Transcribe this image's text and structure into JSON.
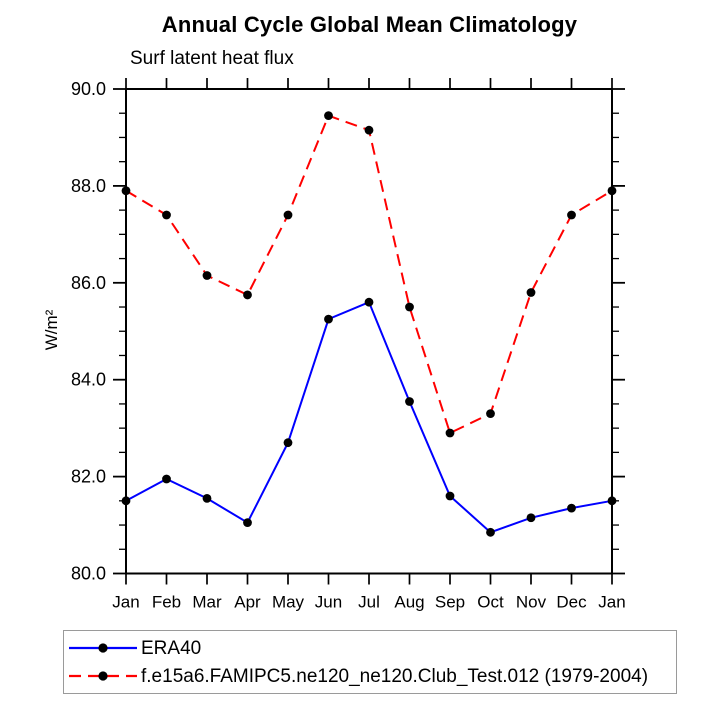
{
  "title": "Annual Cycle Global Mean Climatology",
  "subtitle": "Surf latent heat flux",
  "y_axis_label": "W/m²",
  "legend": {
    "entries": [
      {
        "label": "ERA40",
        "color": "#0000ff",
        "line_style": "solid",
        "marker": "filled-circle",
        "marker_color": "#000000"
      },
      {
        "label": "f.e15a6.FAMIPC5.ne120_ne120.Club_Test.012 (1979-2004)",
        "color": "#ff0000",
        "line_style": "dashed",
        "marker": "filled-circle",
        "marker_color": "#000000"
      }
    ]
  },
  "chart_data": {
    "type": "line",
    "title": "Annual Cycle Global Mean Climatology",
    "subtitle": "Surf latent heat flux",
    "ylabel": "W/m²",
    "categories": [
      "Jan",
      "Feb",
      "Mar",
      "Apr",
      "May",
      "Jun",
      "Jul",
      "Aug",
      "Sep",
      "Oct",
      "Nov",
      "Dec",
      "Jan"
    ],
    "series": [
      {
        "name": "ERA40",
        "color": "#0000ff",
        "style": "solid",
        "marker": "circle",
        "marker_color": "#000000",
        "values": [
          81.5,
          81.95,
          81.55,
          81.05,
          82.7,
          85.25,
          85.6,
          83.55,
          81.6,
          80.85,
          81.15,
          81.35,
          81.5
        ]
      },
      {
        "name": "f.e15a6.FAMIPC5.ne120_ne120.Club_Test.012 (1979-2004)",
        "color": "#ff0000",
        "style": "dashed",
        "marker": "circle",
        "marker_color": "#000000",
        "values": [
          87.9,
          87.4,
          86.15,
          85.75,
          87.4,
          89.45,
          89.15,
          85.5,
          82.9,
          83.3,
          85.8,
          87.4,
          87.9
        ]
      }
    ],
    "ylim": [
      80,
      90
    ],
    "y_major_ticks": [
      80,
      82,
      84,
      86,
      88,
      90
    ],
    "y_tick_labels": [
      "80.0",
      "82.0",
      "84.0",
      "86.0",
      "88.0",
      "90.0"
    ],
    "y_minor_step": 0.5,
    "grid": false,
    "legend_position": "bottom",
    "frame_color": "#000000"
  }
}
